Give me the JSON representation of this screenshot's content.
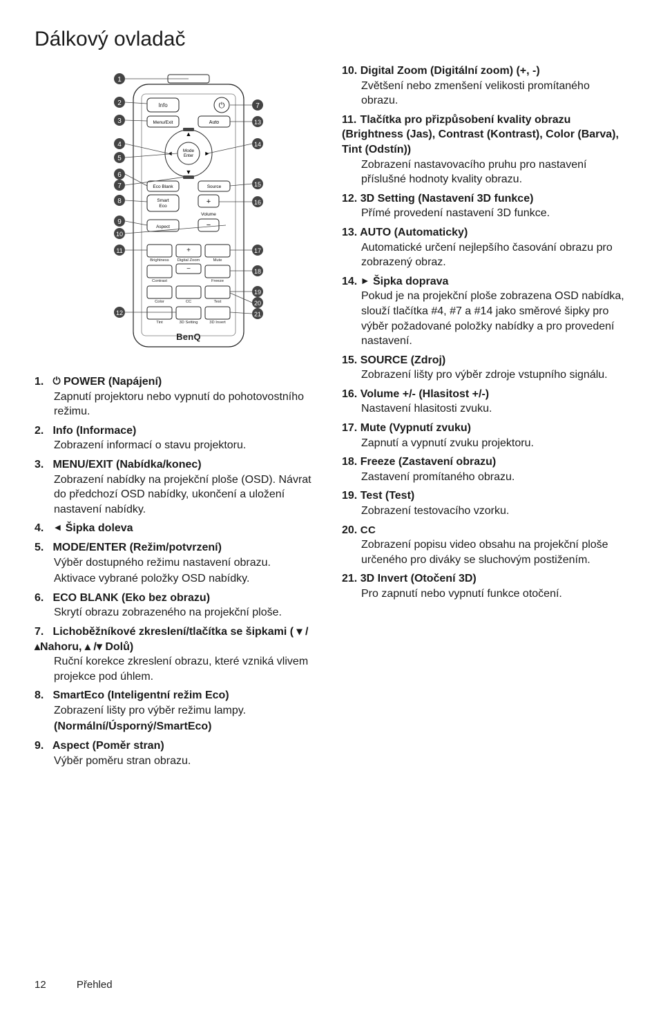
{
  "title": "Dálkový ovladač",
  "footer": {
    "page": "12",
    "section": "Přehled"
  },
  "remote": {
    "callouts_left": [
      "1",
      "2",
      "3",
      "4",
      "5",
      "6",
      "7",
      "8",
      "9",
      "10",
      "11",
      "12"
    ],
    "callouts_right": [
      "7",
      "13",
      "14",
      "15",
      "16",
      "17",
      "18",
      "19",
      "20",
      "21"
    ],
    "labels": {
      "info": "Info",
      "menu_exit": "Menu/Exit",
      "auto": "Auto",
      "mode": "Mode",
      "enter": "Enter",
      "eco_blank": "Eco Blank",
      "source": "Source",
      "smart_eco": "Smart\nEco",
      "volume": "Volume",
      "aspect": "Aspect",
      "brightness": "Brightness",
      "digital_zoom": "Digital Zoom",
      "mute": "Mute",
      "contrast": "Contrast",
      "freeze": "Freeze",
      "color": "Color",
      "cc": "CC",
      "test": "Test",
      "tint": "Tint",
      "threeD_setting": "3D Setting",
      "threeD_invert": "3D Invert",
      "brand": "BenQ",
      "plus": "+",
      "minus": "−"
    }
  },
  "icons": {
    "power": "⏻",
    "left": "◄",
    "right": "►",
    "up": "▲",
    "down": "▼",
    "key_wide_top": "▬",
    "key_wide_bot": "▬",
    "slash": "/"
  },
  "items_left": [
    {
      "n": "1.",
      "title_pre_icon": "",
      "icon": "⏻",
      "title": " POWER (Napájení)",
      "desc": [
        "Zapnutí projektoru nebo vypnutí do pohotovostního režimu."
      ]
    },
    {
      "n": "2.",
      "title": "Info (Informace)",
      "desc": [
        "Zobrazení informací o stavu projektoru."
      ]
    },
    {
      "n": "3.",
      "title": "MENU/EXIT (Nabídka/konec)",
      "desc": [
        "Zobrazení nabídky na projekční ploše (OSD). Návrat do předchozí OSD nabídky, ukončení a uložení nastavení nabídky."
      ]
    },
    {
      "n": "4.",
      "icon": "◄",
      "title": " Šipka doleva",
      "desc": []
    },
    {
      "n": "5.",
      "title": "MODE/ENTER (Režim/potvrzení)",
      "desc": [
        "Výběr dostupného režimu nastavení obrazu.",
        "Aktivace vybrané položky OSD nabídky."
      ]
    },
    {
      "n": "6.",
      "title": "ECO BLANK (Eko bez obrazu)",
      "desc": [
        "Skrytí obrazu zobrazeného na projekční ploše."
      ]
    },
    {
      "n": "7.",
      "title": "Lichoběžníkové zkreslení/tlačítka se šipkami ( ▾ /▴Nahoru, ▴ /▾ Dolů)",
      "desc": [
        "Ruční korekce zkreslení obrazu, které vzniká vlivem projekce pod úhlem."
      ]
    },
    {
      "n": "8.",
      "title": "SmartEco (Inteligentní režim Eco)",
      "desc": [
        "Zobrazení lišty pro výběr režimu lampy."
      ],
      "extra_bold": "(Normální/Úsporný/SmartEco)"
    },
    {
      "n": "9.",
      "title": "Aspect (Poměr stran)",
      "desc": [
        "Výběr poměru stran obrazu."
      ]
    }
  ],
  "items_right": [
    {
      "n": "10.",
      "title": "Digital Zoom (Digitální zoom) (+, -)",
      "desc": [
        "Zvětšení nebo zmenšení velikosti promítaného obrazu."
      ]
    },
    {
      "n": "11.",
      "title": "Tlačítka pro přizpůsobení kvality obrazu (Brightness (Jas), Contrast (Kontrast), Color (Barva), Tint (Odstín))",
      "desc": [
        "Zobrazení nastavovacího pruhu pro nastavení příslušné hodnoty kvality obrazu."
      ]
    },
    {
      "n": "12.",
      "title": "3D Setting (Nastavení 3D funkce)",
      "desc": [
        "Přímé provedení nastavení 3D funkce."
      ]
    },
    {
      "n": "13.",
      "title": "AUTO (Automaticky)",
      "desc": [
        "Automatické určení nejlepšího časování obrazu pro zobrazený obraz."
      ]
    },
    {
      "n": "14.",
      "icon": "►",
      "title": " Šipka doprava",
      "desc": [
        "Pokud je na projekční ploše zobrazena OSD nabídka, slouží tlačítka #4, #7 a #14 jako směrové šipky pro výběr požadované položky nabídky a pro provedení nastavení."
      ]
    },
    {
      "n": "15.",
      "title": "SOURCE (Zdroj)",
      "desc": [
        "Zobrazení lišty pro výběr zdroje vstupního signálu."
      ]
    },
    {
      "n": "16.",
      "title": "Volume +/- (Hlasitost +/-)",
      "desc": [
        "Nastavení hlasitosti zvuku."
      ]
    },
    {
      "n": "17.",
      "title": "Mute (Vypnutí zvuku)",
      "desc": [
        "Zapnutí a vypnutí zvuku projektoru."
      ]
    },
    {
      "n": "18.",
      "title": "Freeze (Zastavení obrazu)",
      "desc": [
        "Zastavení promítaného obrazu."
      ]
    },
    {
      "n": "19.",
      "title": "Test (Test)",
      "desc": [
        "Zobrazení testovacího vzorku."
      ]
    },
    {
      "n": "20.",
      "title": "CC",
      "title_class": "cc",
      "desc": [
        "Zobrazení popisu video obsahu na projekční ploše určeného pro diváky se sluchovým postižením."
      ]
    },
    {
      "n": "21.",
      "title": "3D Invert (Otočení 3D)",
      "desc": [
        "Pro zapnutí nebo vypnutí funkce otočení."
      ]
    }
  ]
}
